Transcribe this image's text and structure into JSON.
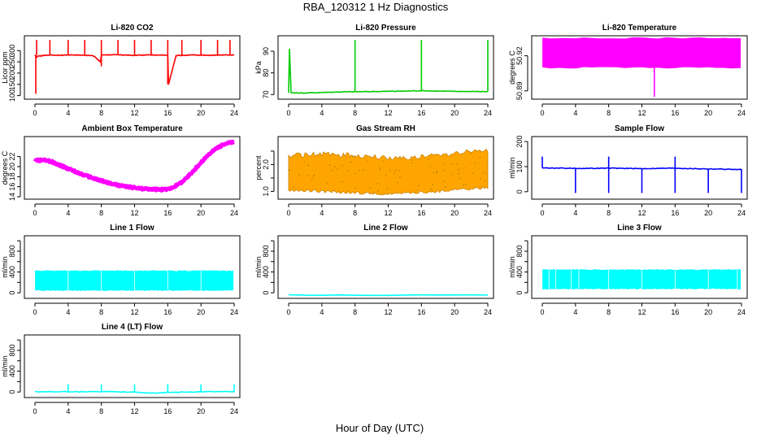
{
  "figure": {
    "title": "RBA_120312  1 Hz Diagnostics",
    "xlabel": "Hour of Day (UTC)"
  },
  "chart_data": [
    {
      "type": "line",
      "title": "Li-820 CO2",
      "ylabel": "Licor ppm",
      "color": "#ff0000",
      "xlim": [
        0,
        24
      ],
      "ylim": [
        95,
        355
      ],
      "xticks": [
        0,
        4,
        8,
        12,
        16,
        20,
        24
      ],
      "yticks": [
        100,
        150,
        200,
        250,
        300
      ],
      "grid": false,
      "series": [
        {
          "x": [
            0,
            0.2,
            0.3,
            1,
            2,
            3,
            4,
            5,
            6,
            7,
            7.9,
            8,
            9,
            10,
            11,
            12,
            13,
            14,
            15,
            16,
            16.1,
            17,
            18,
            19,
            20,
            21,
            22,
            23,
            24
          ],
          "y": [
            280,
            270,
            275,
            278,
            280,
            279,
            281,
            280,
            279,
            278,
            250,
            280,
            281,
            282,
            280,
            279,
            280,
            281,
            280,
            279,
            150,
            278,
            279,
            281,
            280,
            279,
            280,
            281,
            280
          ]
        }
      ],
      "spikes_up": [
        0.2,
        1.8,
        4,
        6,
        8,
        10,
        12,
        14,
        16,
        17.7,
        20,
        22,
        23.5
      ],
      "spikes_down": [
        0.1,
        8,
        16
      ]
    },
    {
      "type": "line",
      "title": "Li-820 Pressure",
      "ylabel": "kPa",
      "color": "#00cc00",
      "xlim": [
        0,
        24
      ],
      "ylim": [
        69,
        96
      ],
      "xticks": [
        0,
        4,
        8,
        12,
        16,
        20,
        24
      ],
      "yticks": [
        70,
        80,
        90
      ],
      "grid": false,
      "series": [
        {
          "x": [
            0,
            0.1,
            0.3,
            2,
            4,
            6,
            8,
            10,
            12,
            14,
            16,
            18,
            20,
            22,
            24
          ],
          "y": [
            71,
            91,
            70.8,
            70.7,
            71,
            71.2,
            71.3,
            71.4,
            71.5,
            71.6,
            71.8,
            71.6,
            71.5,
            71.4,
            71.4
          ]
        }
      ],
      "spikes_up": [
        8,
        16,
        24
      ]
    },
    {
      "type": "area",
      "title": "Li-820 Temperature",
      "ylabel": "degrees C",
      "color": "#ff00ff",
      "xlim": [
        0,
        24
      ],
      "ylim": [
        50.885,
        50.935
      ],
      "xticks": [
        0,
        4,
        8,
        12,
        16,
        20,
        24
      ],
      "yticks": [
        50.89,
        50.92
      ],
      "yticklabels": [
        "50.89",
        "50.92"
      ],
      "grid": false,
      "band": {
        "low": 50.91,
        "high": 50.935
      },
      "spikes_down": [
        {
          "x": 13.5,
          "y": 50.885
        }
      ]
    },
    {
      "type": "line",
      "title": "Ambient Box Temperature",
      "ylabel": "degrees C",
      "color": "#ff00ff",
      "xlim": [
        0,
        24
      ],
      "ylim": [
        14,
        25.5
      ],
      "xticks": [
        0,
        4,
        8,
        12,
        16,
        20,
        24
      ],
      "yticks": [
        14,
        16,
        18,
        20,
        22
      ],
      "grid": false,
      "series": [
        {
          "x": [
            0,
            1,
            2,
            3,
            4,
            5,
            6,
            7,
            8,
            9,
            10,
            11,
            12,
            13,
            14,
            15,
            16,
            17,
            18,
            19,
            20,
            21,
            22,
            23,
            24
          ],
          "y": [
            21.2,
            21.3,
            21.0,
            20.3,
            19.6,
            18.9,
            18.3,
            17.7,
            17.2,
            16.7,
            16.3,
            16.0,
            15.8,
            15.6,
            15.5,
            15.4,
            15.5,
            16.2,
            17.3,
            19.0,
            20.8,
            22.5,
            23.8,
            24.6,
            24.9
          ]
        }
      ]
    },
    {
      "type": "area",
      "title": "Gas Stream RH",
      "ylabel": "percent",
      "color": "#ffa500",
      "xlim": [
        0,
        24
      ],
      "ylim": [
        0.8,
        2.95
      ],
      "xticks": [
        0,
        4,
        8,
        12,
        16,
        20,
        24
      ],
      "yticks": [
        1.0,
        1.5,
        2.0,
        2.5
      ],
      "yticklabels": [
        "1.0",
        "",
        "2.0",
        ""
      ],
      "grid": false,
      "band_low": [
        {
          "x": 0,
          "y": 1.1
        },
        {
          "x": 8,
          "y": 1.0
        },
        {
          "x": 12,
          "y": 0.95
        },
        {
          "x": 18,
          "y": 1.05
        },
        {
          "x": 24,
          "y": 1.2
        }
      ],
      "band_high": [
        {
          "x": 0,
          "y": 2.3
        },
        {
          "x": 4,
          "y": 2.35
        },
        {
          "x": 8,
          "y": 2.3
        },
        {
          "x": 12,
          "y": 2.2
        },
        {
          "x": 16,
          "y": 2.25
        },
        {
          "x": 20,
          "y": 2.4
        },
        {
          "x": 24,
          "y": 2.5
        }
      ]
    },
    {
      "type": "line",
      "title": "Sample Flow",
      "ylabel": "ml/min",
      "color": "#0000ff",
      "xlim": [
        0,
        24
      ],
      "ylim": [
        -20,
        210
      ],
      "xticks": [
        0,
        4,
        8,
        12,
        16,
        20,
        24
      ],
      "yticks": [
        0,
        100,
        200
      ],
      "grid": false,
      "series": [
        {
          "x": [
            0,
            2,
            4,
            6,
            8,
            10,
            12,
            14,
            16,
            18,
            20,
            22,
            24
          ],
          "y": [
            95,
            94,
            93,
            93,
            94,
            93,
            92,
            93,
            94,
            92,
            91,
            90,
            88
          ]
        }
      ],
      "spikes_down": [
        4,
        8,
        12,
        16,
        20,
        24
      ],
      "spikes_up": [
        0,
        8,
        16
      ]
    },
    {
      "type": "area",
      "title": "Line 1 Flow",
      "ylabel": "ml/min",
      "color": "#00ffff",
      "xlim": [
        0,
        24
      ],
      "ylim": [
        -60,
        1050
      ],
      "xticks": [
        0,
        4,
        8,
        12,
        16,
        20,
        24
      ],
      "yticks": [
        0,
        200,
        400,
        600,
        800,
        1000
      ],
      "yticklabels": [
        "0",
        "",
        "400",
        "",
        "800",
        ""
      ],
      "grid": false,
      "band": {
        "low": 50,
        "high": 420
      },
      "gaps": [
        4,
        8,
        12,
        16,
        20
      ]
    },
    {
      "type": "line",
      "title": "Line 2 Flow",
      "ylabel": "ml/min",
      "color": "#00ffff",
      "xlim": [
        0,
        24
      ],
      "ylim": [
        -60,
        1050
      ],
      "xticks": [
        0,
        4,
        8,
        12,
        16,
        20,
        24
      ],
      "yticks": [
        0,
        200,
        400,
        600,
        800,
        1000
      ],
      "yticklabels": [
        "0",
        "",
        "400",
        "",
        "800",
        ""
      ],
      "grid": false,
      "series": [
        {
          "x": [
            0,
            24
          ],
          "y": [
            -45,
            -45
          ]
        }
      ]
    },
    {
      "type": "area",
      "title": "Line 3 Flow",
      "ylabel": "ml/min",
      "color": "#00ffff",
      "xlim": [
        0,
        24
      ],
      "ylim": [
        -60,
        1050
      ],
      "xticks": [
        0,
        4,
        8,
        12,
        16,
        20,
        24
      ],
      "yticks": [
        0,
        200,
        400,
        600,
        800,
        1000
      ],
      "yticklabels": [
        "0",
        "",
        "400",
        "",
        "800",
        ""
      ],
      "grid": false,
      "band": {
        "low": 80,
        "high": 440
      },
      "gaps": [
        0.8,
        1.6,
        3.5,
        4.4,
        8,
        12,
        16,
        20,
        23.5
      ]
    },
    {
      "type": "line",
      "title": "Line 4 (LT) Flow",
      "ylabel": "ml/min",
      "color": "#00ffff",
      "xlim": [
        0,
        24
      ],
      "ylim": [
        -60,
        1050
      ],
      "xticks": [
        0,
        4,
        8,
        12,
        16,
        20,
        24
      ],
      "yticks": [
        0,
        200,
        400,
        600,
        800,
        1000
      ],
      "yticklabels": [
        "0",
        "",
        "400",
        "",
        "800",
        ""
      ],
      "grid": false,
      "series": [
        {
          "x": [
            0,
            4,
            8,
            12,
            14,
            16,
            20,
            24
          ],
          "y": [
            5,
            5,
            5,
            0,
            -20,
            -10,
            5,
            5
          ]
        }
      ],
      "spikes_up": [
        4,
        8,
        12,
        16,
        20,
        24
      ]
    }
  ]
}
